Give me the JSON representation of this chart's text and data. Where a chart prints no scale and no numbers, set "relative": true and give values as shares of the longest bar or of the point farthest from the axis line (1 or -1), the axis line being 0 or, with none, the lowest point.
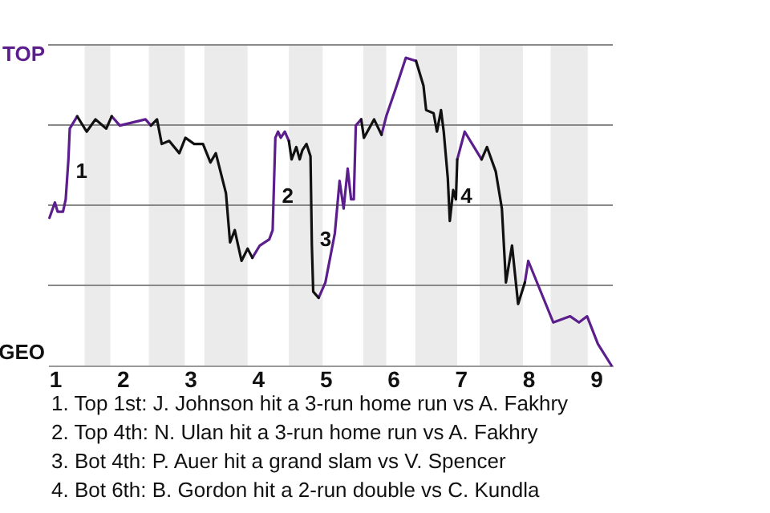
{
  "chart_data": {
    "type": "line",
    "relative": true,
    "x": [
      0.92,
      1.0,
      1.04,
      1.12,
      1.16,
      1.2,
      1.22,
      1.33,
      1.47,
      1.6,
      1.76,
      1.84,
      1.96,
      2.34,
      2.42,
      2.51,
      2.58,
      2.69,
      2.84,
      2.93,
      3.06,
      3.19,
      3.3,
      3.38,
      3.53,
      3.59,
      3.66,
      3.76,
      3.85,
      3.92,
      4.03,
      4.17,
      4.22,
      4.26,
      4.3,
      4.34,
      4.4,
      4.46,
      4.5,
      4.57,
      4.62,
      4.66,
      4.72,
      4.78,
      4.8,
      4.82,
      4.9,
      5.0,
      5.14,
      5.21,
      5.27,
      5.33,
      5.38,
      5.42,
      5.45,
      5.53,
      5.57,
      5.72,
      5.83,
      5.9,
      6.04,
      6.19,
      6.34,
      6.45,
      6.49,
      6.6,
      6.65,
      6.71,
      6.75,
      6.81,
      6.84,
      6.89,
      6.93,
      6.95,
      7.06,
      7.31,
      7.39,
      7.52,
      7.61,
      7.67,
      7.76,
      7.85,
      7.95,
      8.0,
      8.37,
      8.62,
      8.75,
      8.87,
      9.03,
      9.23
    ],
    "series": [
      {
        "name": "TOP",
        "color": "#5c1e8c",
        "values": [
          0.48,
          0.53,
          0.5,
          0.5,
          0.54,
          0.67,
          0.77,
          0.81,
          null,
          null,
          null,
          0.81,
          0.78,
          0.8,
          0.78,
          null,
          null,
          null,
          null,
          null,
          null,
          null,
          null,
          null,
          null,
          null,
          null,
          null,
          null,
          0.35,
          0.39,
          0.41,
          0.44,
          0.74,
          0.76,
          0.74,
          0.76,
          0.73,
          null,
          null,
          null,
          null,
          null,
          null,
          null,
          null,
          0.22,
          0.27,
          0.43,
          0.6,
          0.51,
          0.64,
          0.54,
          0.54,
          0.78,
          0.8,
          null,
          null,
          0.75,
          0.81,
          0.9,
          1.0,
          0.99,
          null,
          null,
          null,
          null,
          null,
          null,
          null,
          null,
          null,
          null,
          0.67,
          0.76,
          0.67,
          null,
          null,
          null,
          null,
          null,
          null,
          0.27,
          0.34,
          0.14,
          0.16,
          0.14,
          0.16,
          0.07,
          0.0
        ]
      },
      {
        "name": "GEO",
        "color": "#111111",
        "values": [
          null,
          null,
          null,
          null,
          null,
          null,
          null,
          0.81,
          0.76,
          0.8,
          0.77,
          0.81,
          null,
          null,
          0.78,
          0.8,
          0.72,
          0.73,
          0.69,
          0.74,
          0.72,
          0.72,
          0.66,
          0.69,
          0.56,
          0.4,
          0.44,
          0.34,
          0.38,
          0.35,
          null,
          null,
          null,
          null,
          null,
          null,
          null,
          0.73,
          0.67,
          0.71,
          0.67,
          0.7,
          0.72,
          0.68,
          0.39,
          0.24,
          0.22,
          null,
          null,
          null,
          null,
          null,
          null,
          null,
          null,
          0.8,
          0.74,
          0.8,
          0.75,
          null,
          null,
          null,
          0.99,
          0.91,
          0.83,
          0.82,
          0.76,
          0.83,
          0.76,
          0.61,
          0.47,
          0.57,
          0.54,
          0.67,
          null,
          0.67,
          0.71,
          0.63,
          0.51,
          0.27,
          0.39,
          0.2,
          0.27,
          null,
          null,
          null,
          null,
          null,
          null,
          null
        ]
      }
    ],
    "xlim": [
      0.9,
      9.25
    ],
    "xticks": [
      1,
      2,
      3,
      4,
      5,
      6,
      7,
      8,
      9
    ],
    "grid": "y",
    "bands": [
      {
        "axis": "x",
        "from": 1.44,
        "to": 1.82,
        "color": "#ebebeb"
      },
      {
        "axis": "x",
        "from": 2.39,
        "to": 2.92,
        "color": "#ebebeb"
      },
      {
        "axis": "x",
        "from": 3.21,
        "to": 3.85,
        "color": "#ebebeb"
      },
      {
        "axis": "x",
        "from": 4.46,
        "to": 4.96,
        "color": "#ebebeb"
      },
      {
        "axis": "x",
        "from": 5.56,
        "to": 5.9,
        "color": "#ebebeb"
      },
      {
        "axis": "x",
        "from": 6.33,
        "to": 6.95,
        "color": "#ebebeb"
      },
      {
        "axis": "x",
        "from": 7.28,
        "to": 7.92,
        "color": "#ebebeb"
      },
      {
        "axis": "x",
        "from": 8.33,
        "to": 8.88,
        "color": "#ebebeb"
      }
    ],
    "annotations": [
      {
        "text": "1",
        "x": 1.19,
        "y": 0.63
      },
      {
        "text": "2",
        "x": 4.24,
        "y": 0.55
      },
      {
        "text": "3",
        "x": 4.8,
        "y": 0.41
      },
      {
        "text": "4",
        "x": 6.88,
        "y": 0.55
      },
      "1. Top 1st: J. Johnson hit a 3-run home run vs A. Fakhry",
      "2. Top 4th: N. Ulan hit a 3-run home run vs A. Fakhry",
      "3. Bot 4th: P. Auer hit a grand slam vs V. Spencer",
      "4. Bot 6th: B. Gordon hit a 2-run double vs C. Kundla"
    ]
  }
}
